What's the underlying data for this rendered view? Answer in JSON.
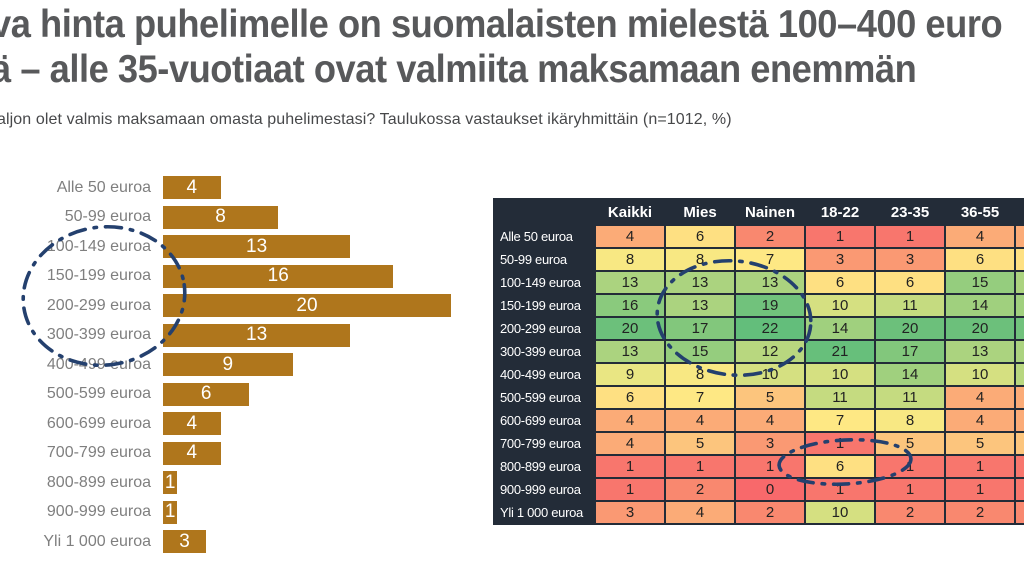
{
  "title": {
    "line1": "va hinta puhelimelle on suomalaisten mielestä 100–400 euro",
    "line2": "ä – alle 35-vuotiaat ovat valmiita maksamaan enemmän"
  },
  "subtitle": "aljon olet valmis maksamaan omasta puhelimestasi? Taulukossa vastaukset ikäryhmittäin (n=1012, %)",
  "chart_data": {
    "type": "bar",
    "orientation": "horizontal",
    "categories": [
      "Alle 50 euroa",
      "50-99 euroa",
      "100-149 euroa",
      "150-199 euroa",
      "200-299 euroa",
      "300-399 euroa",
      "400-499 euroa",
      "500-599 euroa",
      "600-699 euroa",
      "700-799 euroa",
      "800-899 euroa",
      "900-999 euroa",
      "Yli 1 000 euroa"
    ],
    "values": [
      4,
      8,
      13,
      16,
      20,
      13,
      9,
      6,
      4,
      4,
      1,
      1,
      3
    ],
    "xlim": [
      0,
      22
    ],
    "bar_color": "#AF761C",
    "category_label_color": "#7F7F7F",
    "value_label_color": "#FFFFFF"
  },
  "table": {
    "columns": [
      "Kaikki",
      "Mies",
      "Nainen",
      "18-22",
      "23-35",
      "36-55"
    ],
    "rows": [
      {
        "label": "Alle 50 euroa",
        "values": [
          4,
          6,
          2,
          1,
          1,
          4
        ]
      },
      {
        "label": "50-99 euroa",
        "values": [
          8,
          8,
          7,
          3,
          3,
          6
        ]
      },
      {
        "label": "100-149 euroa",
        "values": [
          13,
          13,
          13,
          6,
          6,
          15
        ]
      },
      {
        "label": "150-199 euroa",
        "values": [
          16,
          13,
          19,
          10,
          11,
          14
        ]
      },
      {
        "label": "200-299 euroa",
        "values": [
          20,
          17,
          22,
          14,
          20,
          20
        ]
      },
      {
        "label": "300-399 euroa",
        "values": [
          13,
          15,
          12,
          21,
          17,
          13
        ]
      },
      {
        "label": "400-499 euroa",
        "values": [
          9,
          8,
          10,
          10,
          14,
          10
        ]
      },
      {
        "label": "500-599 euroa",
        "values": [
          6,
          7,
          5,
          11,
          11,
          4
        ]
      },
      {
        "label": "600-699 euroa",
        "values": [
          4,
          4,
          4,
          7,
          8,
          4
        ]
      },
      {
        "label": "700-799 euroa",
        "values": [
          4,
          5,
          3,
          1,
          5,
          5
        ]
      },
      {
        "label": "800-899 euroa",
        "values": [
          1,
          1,
          1,
          6,
          1,
          1
        ]
      },
      {
        "label": "900-999 euroa",
        "values": [
          1,
          2,
          0,
          1,
          1,
          1
        ]
      },
      {
        "label": "Yli 1 000 euroa",
        "values": [
          3,
          4,
          2,
          10,
          2,
          2
        ]
      }
    ],
    "frame_color": "#232C38",
    "header_text_color": "#FFFFFF",
    "cell_text_color": "#222222",
    "cutoff_column_colors": [
      "#FBAB77",
      "#FEE082",
      "#ABD37F",
      "#A0D07E",
      "#71C27C",
      "#ABD37F",
      "#B8D77F",
      "#FBAB77",
      "#FBAB77",
      "#FCC57D",
      "#F8766D",
      "#F8766D",
      "#F9886F"
    ]
  },
  "color_scale": {
    "min_color": "#F8696B",
    "mid_color": "#FFEB84",
    "max_color": "#63BE7B",
    "value_colors": [
      "#F8696B",
      "#F8766D",
      "#F9886F",
      "#FA9973",
      "#FBAB77",
      "#FCC57D",
      "#FEE082",
      "#FEE884",
      "#F8E883",
      "#E9E683",
      "#D5E081",
      "#C5DB80",
      "#B8D77F",
      "#ABD37F",
      "#A0D07E",
      "#95CD7E",
      "#8ACA7D",
      "#82C77C",
      "#7AC47C",
      "#71C27C",
      "#6CC07B",
      "#67BF7B",
      "#63BE7B"
    ]
  },
  "annotations": {
    "style": "hand-drawn dash-dot ellipses",
    "color": "#24406E"
  }
}
